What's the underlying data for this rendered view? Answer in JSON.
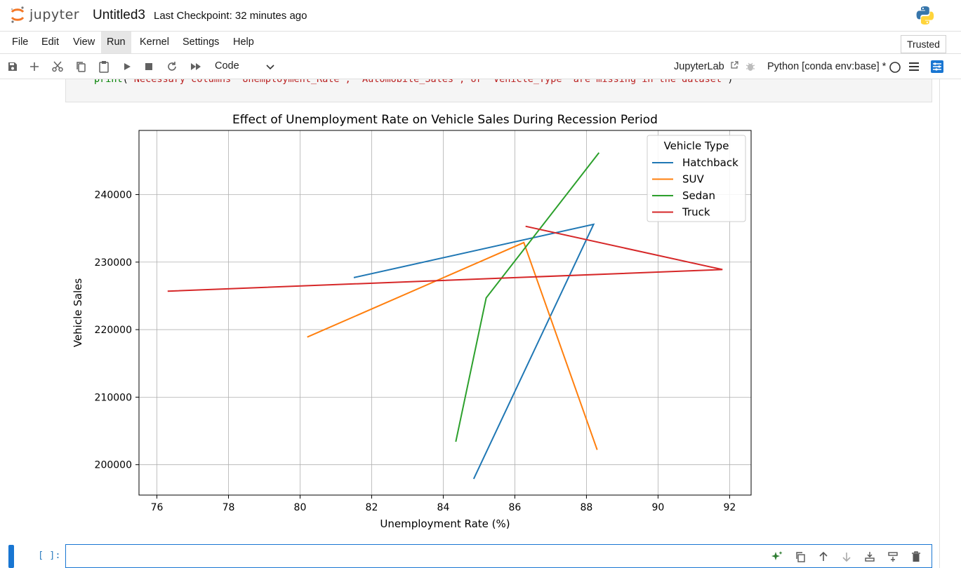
{
  "app": {
    "logo_text": "jupyter",
    "notebook_title": "Untitled3",
    "checkpoint": "Last Checkpoint: 32 minutes ago"
  },
  "menu": {
    "items": [
      "File",
      "Edit",
      "View",
      "Run",
      "Kernel",
      "Settings",
      "Help"
    ],
    "active": "Run",
    "trusted_label": "Trusted"
  },
  "toolbar": {
    "cell_type": "Code",
    "jupyterlab_label": "JupyterLab",
    "kernel_label": "Python [conda env:base] *"
  },
  "code": {
    "fn": "print",
    "text": "\"Necessary columns 'Unemployment_Rate', 'Automobile_Sales', or 'Vehicle_Type' are missing in the dataset\""
  },
  "new_cell": {
    "prompt": "[ ]:"
  },
  "colors": {
    "accent": "#1976d2",
    "hatchback": "#1f77b4",
    "suv": "#ff7f0e",
    "sedan": "#2ca02c",
    "truck": "#d62728"
  },
  "chart_data": {
    "type": "line",
    "title": "Effect of Unemployment Rate on Vehicle Sales During Recession Period",
    "xlabel": "Unemployment Rate (%)",
    "ylabel": "Vehicle Sales",
    "xlim": [
      75.5,
      92.6
    ],
    "ylim": [
      195500,
      249500
    ],
    "xticks": [
      76,
      78,
      80,
      82,
      84,
      86,
      88,
      90,
      92
    ],
    "yticks": [
      200000,
      210000,
      220000,
      230000,
      240000
    ],
    "grid": true,
    "legend_title": "Vehicle Type",
    "legend_position": "top-right",
    "series": [
      {
        "name": "Hatchback",
        "color": "#1f77b4",
        "x": [
          81.5,
          88.2,
          84.85
        ],
        "y": [
          227700,
          235600,
          197900
        ]
      },
      {
        "name": "SUV",
        "color": "#ff7f0e",
        "x": [
          80.2,
          86.25,
          88.3
        ],
        "y": [
          218900,
          232900,
          202200
        ]
      },
      {
        "name": "Sedan",
        "color": "#2ca02c",
        "x": [
          84.35,
          85.2,
          88.35
        ],
        "y": [
          203400,
          224700,
          246200
        ]
      },
      {
        "name": "Truck",
        "color": "#d62728",
        "x": [
          86.3,
          91.8,
          76.3
        ],
        "y": [
          235300,
          228900,
          225700
        ]
      }
    ]
  }
}
